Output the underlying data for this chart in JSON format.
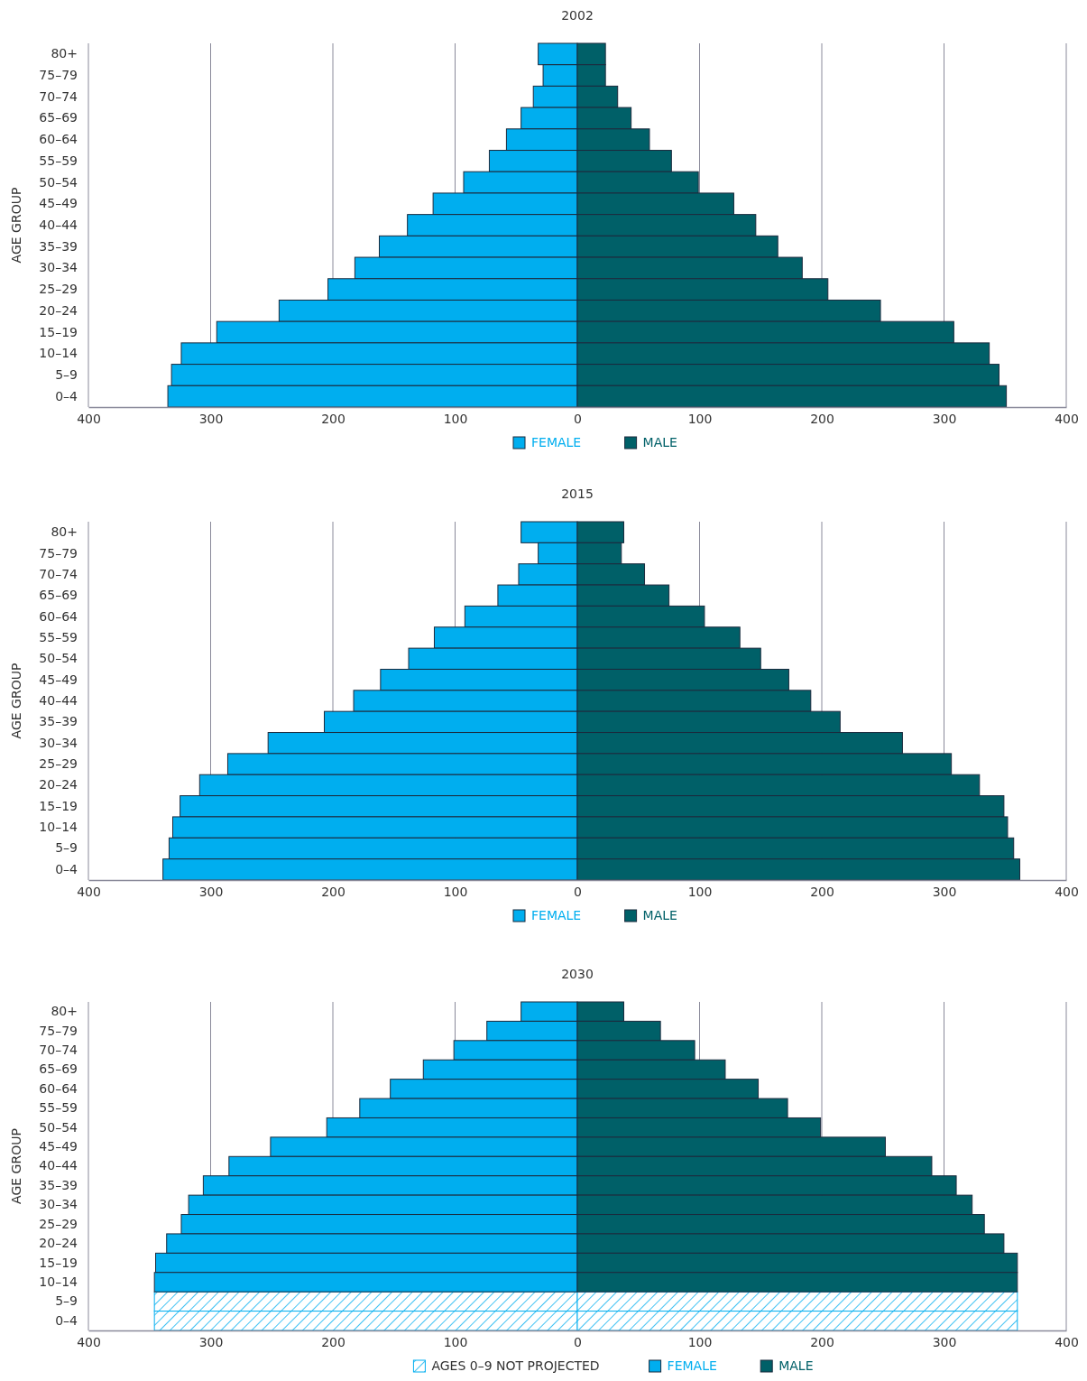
{
  "chart_data": [
    {
      "type": "bar",
      "orientation": "horizontal",
      "stacked": true,
      "title": "2002",
      "ylabel": "AGE GROUP",
      "categories": [
        "80+",
        "75–79",
        "70–74",
        "65–69",
        "60–64",
        "55–59",
        "50–54",
        "45–49",
        "40–44",
        "35–39",
        "30–34",
        "25–29",
        "20–24",
        "15–19",
        "10–14",
        "5–9",
        "0–4"
      ],
      "series": [
        {
          "name": "FEMALE",
          "color": "#00aeef",
          "values": [
            -32,
            -28,
            -36,
            -46,
            -58,
            -72,
            -93,
            -118,
            -139,
            -162,
            -182,
            -204,
            -244,
            -295,
            -324,
            -332,
            -335
          ]
        },
        {
          "name": "MALE",
          "color": "#006068",
          "values": [
            23,
            23,
            33,
            44,
            59,
            77,
            99,
            128,
            146,
            164,
            184,
            205,
            248,
            308,
            337,
            345,
            351
          ]
        }
      ],
      "xlim": [
        -400,
        400
      ],
      "xticks": [
        {
          "value": -400,
          "label": "400"
        },
        {
          "value": -300,
          "label": "300"
        },
        {
          "value": -200,
          "label": "200"
        },
        {
          "value": -100,
          "label": "100"
        },
        0,
        100,
        200,
        300,
        400
      ],
      "grid": "x",
      "legend": "bottom"
    },
    {
      "type": "bar",
      "orientation": "horizontal",
      "stacked": true,
      "title": "2015",
      "ylabel": "AGE GROUP",
      "categories": [
        "80+",
        "75–79",
        "70–74",
        "65–69",
        "60–64",
        "55–59",
        "50–54",
        "45–49",
        "40–44",
        "35–39",
        "30–34",
        "25–29",
        "20–24",
        "15–19",
        "10–14",
        "5–9",
        "0–4"
      ],
      "series": [
        {
          "name": "FEMALE",
          "color": "#00aeef",
          "values": [
            -46,
            -32,
            -48,
            -65,
            -92,
            -117,
            -138,
            -161,
            -183,
            -207,
            -253,
            -286,
            -309,
            -325,
            -331,
            -334,
            -339
          ]
        },
        {
          "name": "MALE",
          "color": "#006068",
          "values": [
            38,
            36,
            55,
            75,
            104,
            133,
            150,
            173,
            191,
            215,
            266,
            306,
            329,
            349,
            352,
            357,
            362
          ]
        }
      ],
      "xlim": [
        -400,
        400
      ],
      "xticks": [
        {
          "value": -400,
          "label": "400"
        },
        {
          "value": -300,
          "label": "300"
        },
        {
          "value": -200,
          "label": "200"
        },
        {
          "value": -100,
          "label": "100"
        },
        0,
        100,
        200,
        300,
        400
      ],
      "grid": "x",
      "legend": "bottom"
    },
    {
      "type": "bar",
      "orientation": "horizontal",
      "stacked": true,
      "title": "2030",
      "ylabel": "AGE GROUP",
      "categories": [
        "80+",
        "75–79",
        "70–74",
        "65–69",
        "60–64",
        "55–59",
        "50–54",
        "45–49",
        "40–44",
        "35–39",
        "30–34",
        "25–29",
        "20–24",
        "15–19",
        "10–14",
        "5–9",
        "0–4"
      ],
      "series": [
        {
          "name": "AGES 0–9 NOT PROJECTED",
          "color": "#00aeef",
          "base": [
            null,
            null,
            null,
            null,
            null,
            null,
            null,
            null,
            null,
            null,
            null,
            null,
            null,
            null,
            null,
            0,
            0
          ],
          "values": [
            null,
            null,
            null,
            null,
            null,
            null,
            null,
            null,
            null,
            null,
            null,
            null,
            null,
            null,
            null,
            -346,
            -346
          ]
        },
        {
          "color": "#00aeef",
          "base": [
            null,
            null,
            null,
            null,
            null,
            null,
            null,
            null,
            null,
            null,
            null,
            null,
            null,
            null,
            null,
            0,
            0
          ],
          "values": [
            null,
            null,
            null,
            null,
            null,
            null,
            null,
            null,
            null,
            null,
            null,
            null,
            null,
            null,
            null,
            360,
            360
          ]
        },
        {
          "name": "FEMALE",
          "color": "#00aeef",
          "values": [
            -46,
            -74,
            -101,
            -126,
            -153,
            -178,
            -205,
            -251,
            -285,
            -306,
            -318,
            -324,
            -336,
            -345,
            -346,
            null,
            null
          ]
        },
        {
          "name": "MALE",
          "color": "#006068",
          "values": [
            38,
            68,
            96,
            121,
            148,
            172,
            199,
            252,
            290,
            310,
            323,
            333,
            349,
            360,
            360,
            null,
            null
          ]
        }
      ],
      "xlim": [
        -400,
        400
      ],
      "xticks": [
        {
          "value": -400,
          "label": "400"
        },
        {
          "value": -300,
          "label": "300"
        },
        {
          "value": -200,
          "label": "200"
        },
        {
          "value": -100,
          "label": "100"
        },
        0,
        100,
        200,
        300,
        400
      ],
      "grid": "x",
      "legend": "bottom"
    }
  ]
}
